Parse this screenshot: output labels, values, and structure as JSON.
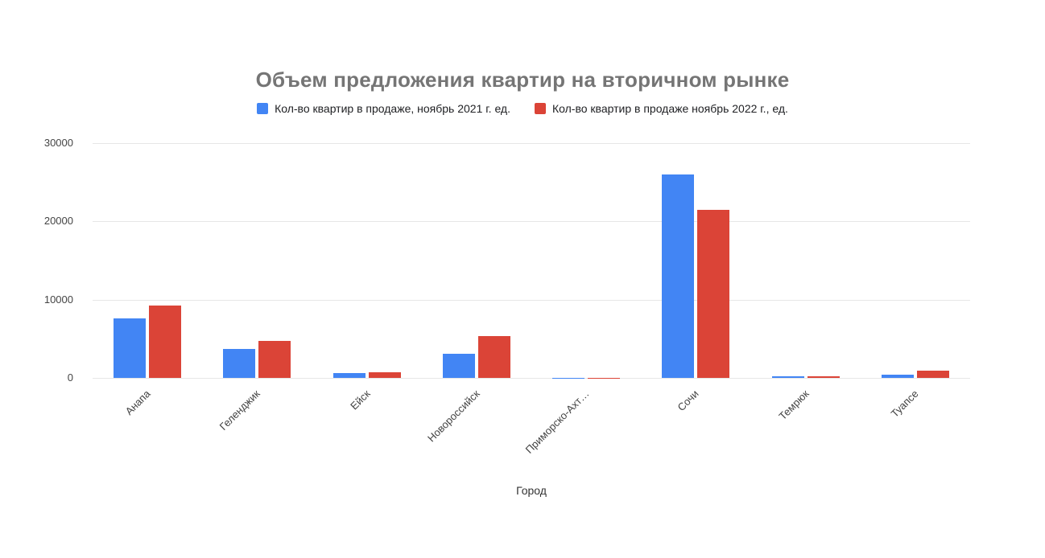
{
  "chart_data": {
    "type": "bar",
    "title": "Объем предложения квартир на вторичном рынке",
    "xlabel": "Город",
    "ylabel": "",
    "categories": [
      "Анапа",
      "Геленджик",
      "Ейск",
      "Новороссийск",
      "Приморско-Ахт…",
      "Сочи",
      "Темрюк",
      "Туапсе"
    ],
    "series": [
      {
        "name": "Кол-во квартир в продаже, ноябрь 2021 г. ед.",
        "color": "#4285f4",
        "values": [
          7600,
          3700,
          600,
          3100,
          40,
          26000,
          200,
          450
        ]
      },
      {
        "name": "Кол-во квартир в продаже ноябрь 2022 г., ед.",
        "color": "#db4437",
        "values": [
          9200,
          4700,
          700,
          5300,
          50,
          21500,
          200,
          900
        ]
      }
    ],
    "ylim": [
      0,
      30000
    ],
    "yticks": [
      0,
      10000,
      20000,
      30000
    ],
    "grid": true,
    "legend_position": "top",
    "background": "#ffffff",
    "gridline_color": "#e6e6e6",
    "axis_line_color": "#616161",
    "title_color": "#757575"
  }
}
